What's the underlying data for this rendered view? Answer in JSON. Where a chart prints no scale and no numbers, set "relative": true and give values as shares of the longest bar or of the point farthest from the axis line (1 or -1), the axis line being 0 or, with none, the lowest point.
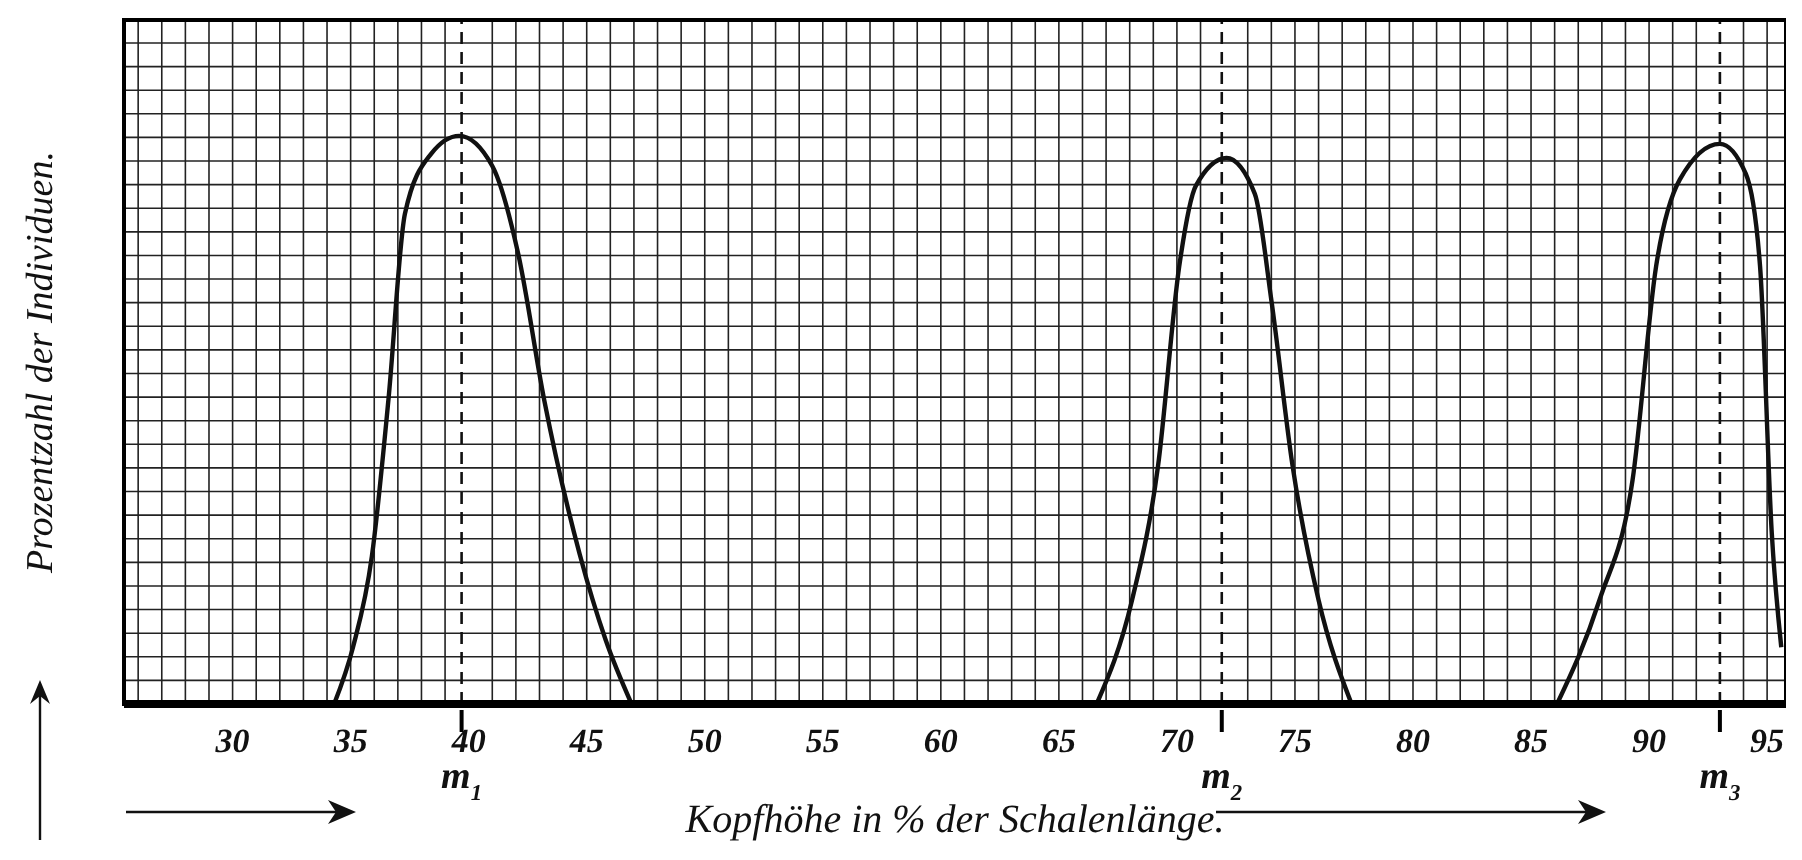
{
  "chart_data": {
    "type": "line",
    "relative": true,
    "xlabel": "Kopfhöhe in % der Schalenlänge.",
    "ylabel": "Prozentzahl der Individuen.",
    "xlim": [
      25.4,
      95.8
    ],
    "xticks": [
      30,
      35,
      40,
      45,
      50,
      55,
      60,
      65,
      70,
      75,
      80,
      85,
      90,
      95
    ],
    "grid": true,
    "marker": "none",
    "line_style": "solid",
    "series": [
      {
        "color": "#111111",
        "x": [
          34.3,
          35.1,
          35.9,
          36.6,
          37.3,
          38.4,
          39.6,
          41.0,
          42.1,
          43.2,
          44.7,
          45.8,
          46.9
        ],
        "values": [
          0,
          0.1,
          0.26,
          0.535,
          0.863,
          0.968,
          1,
          0.947,
          0.792,
          0.535,
          0.264,
          0.113,
          0
        ]
      },
      {
        "color": "#111111",
        "x": [
          66.6,
          68.1,
          69.2,
          70.1,
          70.8,
          72.1,
          73.3,
          74.0,
          74.9,
          76.0,
          77.4
        ],
        "values": [
          0,
          0.183,
          0.419,
          0.771,
          0.912,
          0.961,
          0.898,
          0.711,
          0.419,
          0.183,
          0
        ]
      },
      {
        "color": "#111111",
        "x": [
          86.1,
          87.9,
          89.3,
          90.3,
          91.3,
          93.0,
          94.1,
          94.7,
          95.2,
          95.6
        ],
        "values": [
          0,
          0.183,
          0.394,
          0.771,
          0.923,
          0.986,
          0.933,
          0.771,
          0.299,
          0.1
        ]
      }
    ],
    "ref_lines": [
      {
        "axis": "x",
        "value": 39.7,
        "label": "m$_{1}$",
        "line_style": "dashed"
      },
      {
        "axis": "x",
        "value": 71.9,
        "label": "m$_{2}$",
        "line_style": "dashed"
      },
      {
        "axis": "x",
        "value": 93.0,
        "label": "m$_{3}$",
        "line_style": "dashed"
      }
    ]
  }
}
